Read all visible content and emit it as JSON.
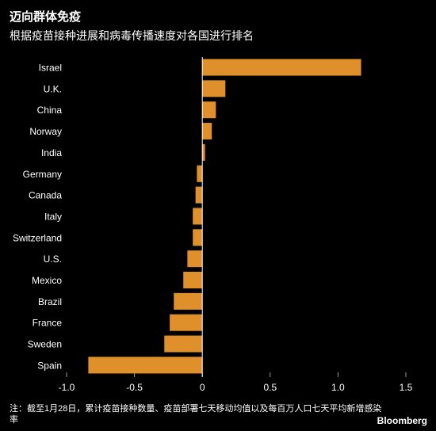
{
  "header": {
    "title": "迈向群体免疫",
    "subtitle": "根据疫苗接种进展和病毒传播速度对各国进行排名"
  },
  "footer": {
    "note": "注：截至1月28日，累计疫苗接种数量、疫苗部署七天移动均值以及每百万人口七天平均新增感染率",
    "brand": "Bloomberg"
  },
  "colors": {
    "bar": "#e0902b",
    "background": "#000000",
    "text": "#ffffff",
    "zero_line": "#ffffff"
  },
  "chart_data": {
    "type": "bar",
    "orientation": "horizontal",
    "title": "迈向群体免疫",
    "subtitle": "根据疫苗接种进展和病毒传播速度对各国进行排名",
    "xlabel": "",
    "ylabel": "",
    "xlim": [
      -1.0,
      1.5
    ],
    "xticks": [
      -1.0,
      -0.5,
      0,
      0.5,
      1.0,
      1.5
    ],
    "xtick_labels": [
      "-1.0",
      "-0.5",
      "0",
      "0.5",
      "1.0",
      "1.5"
    ],
    "grid": false,
    "legend": "none",
    "categories": [
      "Israel",
      "U.K.",
      "China",
      "Norway",
      "India",
      "Germany",
      "Canada",
      "Italy",
      "Switzerland",
      "U.S.",
      "Mexico",
      "Brazil",
      "France",
      "Sweden",
      "Spain"
    ],
    "values": [
      1.17,
      0.17,
      0.1,
      0.07,
      0.02,
      -0.04,
      -0.05,
      -0.07,
      -0.07,
      -0.11,
      -0.14,
      -0.21,
      -0.24,
      -0.28,
      -0.84
    ]
  }
}
